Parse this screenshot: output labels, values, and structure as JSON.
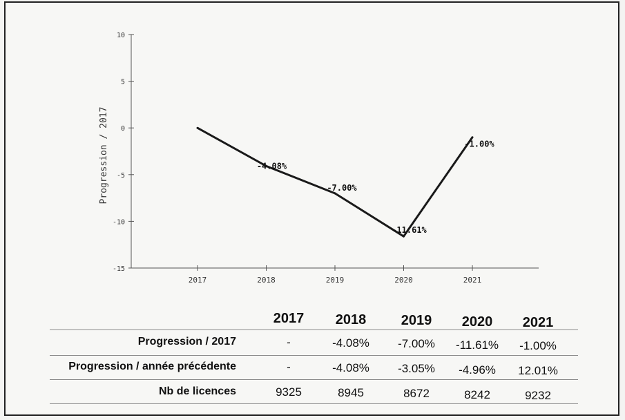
{
  "chart_data": {
    "type": "line",
    "x": [
      "2017",
      "2018",
      "2019",
      "2020",
      "2021"
    ],
    "series": [
      {
        "values": [
          0,
          -4.08,
          -7.0,
          -11.61,
          -1.0
        ],
        "labels": [
          "",
          "-4.08%",
          "-7.00%",
          "-11.61%",
          "-1.00%"
        ]
      }
    ],
    "ylabel": "Progression / 2017",
    "xlabel": "",
    "ylim": [
      -15,
      10
    ],
    "yticks": [
      "10",
      "5",
      "0",
      "-5",
      "-10",
      "-15"
    ],
    "grid": false,
    "line_color": "#1a1a1a"
  },
  "table": {
    "columns": [
      "2017",
      "2018",
      "2019",
      "2020",
      "2021"
    ],
    "rows": [
      {
        "label": "Progression / 2017",
        "values": [
          "-",
          "-4.08%",
          "-7.00%",
          "-11.61%",
          "-1.00%"
        ]
      },
      {
        "label": "Progression / année précédente",
        "values": [
          "-",
          "-4.08%",
          "-3.05%",
          "-4.96%",
          "12.01%"
        ]
      },
      {
        "label": "Nb de licences",
        "values": [
          "9325",
          "8945",
          "8672",
          "8242",
          "9232"
        ]
      }
    ]
  }
}
